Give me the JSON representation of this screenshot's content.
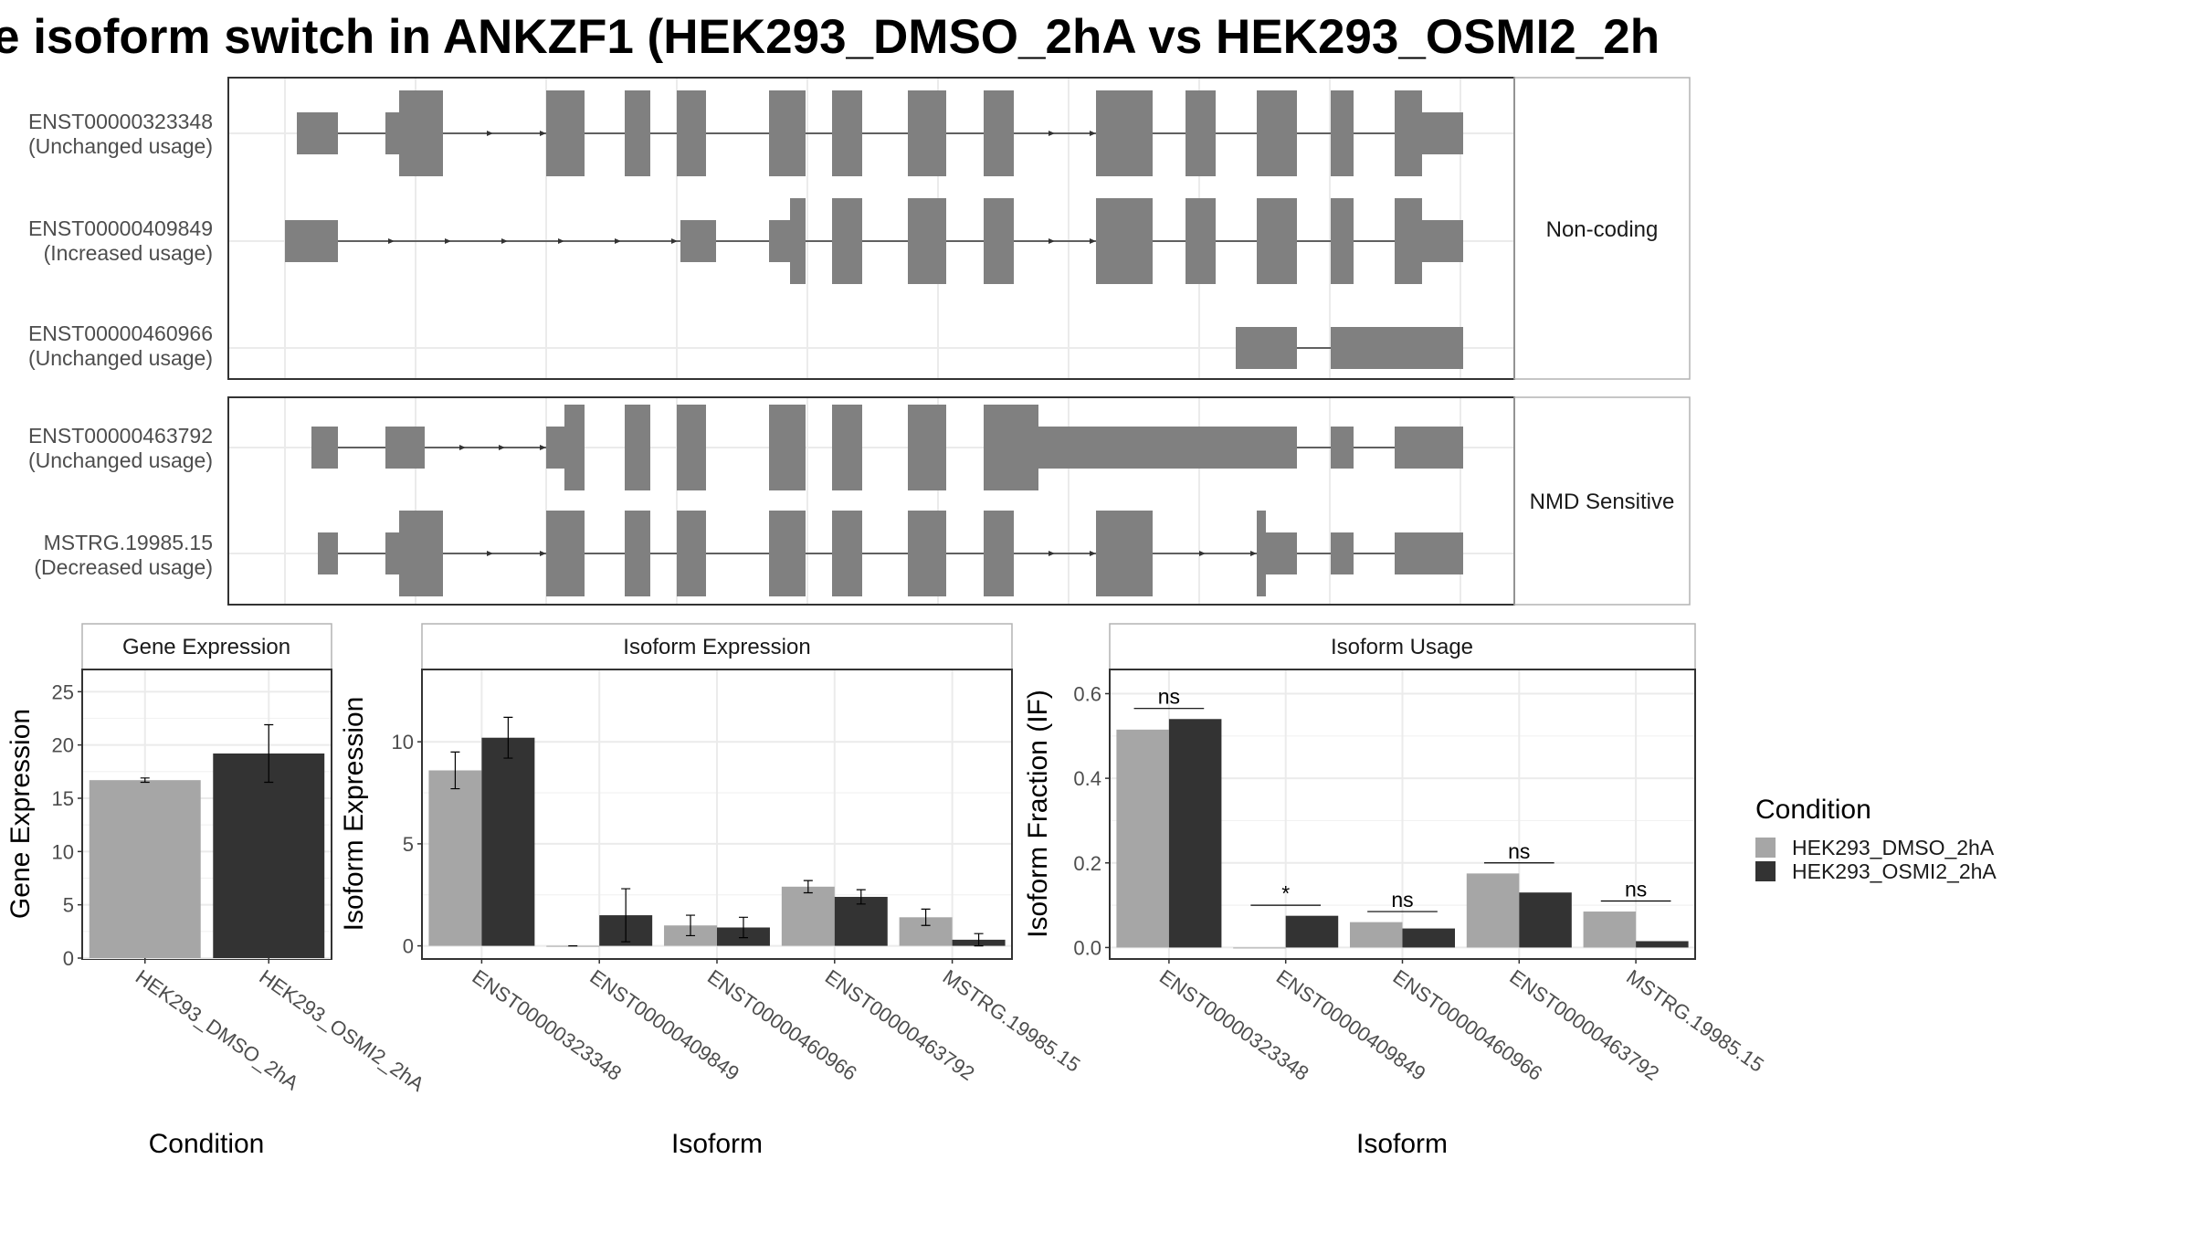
{
  "chart_data": [
    {
      "type": "gene-structure",
      "title": "e isoform switch in ANKZF1 (HEK293_DMSO_2hA vs HEK293_OSMI2_2h",
      "groups": [
        {
          "name": "Non-coding",
          "isoforms": [
            {
              "id": "ENST00000323348",
              "usage": "(Unchanged usage)"
            },
            {
              "id": "ENST00000409849",
              "usage": "(Increased usage)"
            },
            {
              "id": "ENST00000460966",
              "usage": "(Unchanged usage)"
            }
          ]
        },
        {
          "name": "NMD Sensitive",
          "isoforms": [
            {
              "id": "ENST00000463792",
              "usage": "(Unchanged usage)"
            },
            {
              "id": "MSTRG.19985.15",
              "usage": "(Decreased usage)"
            }
          ]
        }
      ],
      "exon_color": "#808080"
    },
    {
      "type": "bar",
      "title": "Gene Expression",
      "xlabel": "Condition",
      "ylabel": "Gene Expression",
      "categories": [
        "HEK293_DMSO_2hA",
        "HEK293_OSMI2_2hA"
      ],
      "values": [
        16.7,
        19.2
      ],
      "errors": [
        0.2,
        2.7
      ],
      "ylim": [
        0,
        27
      ],
      "yticks": [
        0,
        5,
        10,
        15,
        20,
        25
      ]
    },
    {
      "type": "bar",
      "title": "Isoform Expression",
      "xlabel": "Isoform",
      "ylabel": "Isoform Expression",
      "categories": [
        "ENST00000323348",
        "ENST00000409849",
        "ENST00000460966",
        "ENST00000463792",
        "MSTRG.19985.15"
      ],
      "series": [
        {
          "name": "HEK293_DMSO_2hA",
          "values": [
            8.6,
            0.0,
            1.0,
            2.9,
            1.4
          ],
          "errors": [
            0.9,
            0.0,
            0.5,
            0.3,
            0.4
          ]
        },
        {
          "name": "HEK293_OSMI2_2hA",
          "values": [
            10.2,
            1.5,
            0.9,
            2.4,
            0.3
          ],
          "errors": [
            1.0,
            1.3,
            0.5,
            0.35,
            0.3
          ]
        }
      ],
      "ylim": [
        -0.6,
        13.5
      ],
      "yticks": [
        0,
        5,
        10
      ]
    },
    {
      "type": "bar",
      "title": "Isoform Usage",
      "xlabel": "Isoform",
      "ylabel": "Isoform Fraction (IF)",
      "categories": [
        "ENST00000323348",
        "ENST00000409849",
        "ENST00000460966",
        "ENST00000463792",
        "MSTRG.19985.15"
      ],
      "series": [
        {
          "name": "HEK293_DMSO_2hA",
          "values": [
            0.515,
            0.0,
            0.06,
            0.175,
            0.085
          ]
        },
        {
          "name": "HEK293_OSMI2_2hA",
          "values": [
            0.54,
            0.075,
            0.045,
            0.13,
            0.015
          ]
        }
      ],
      "significance": [
        "ns",
        "*",
        "ns",
        "ns",
        "ns"
      ],
      "ylim": [
        -0.025,
        0.655
      ],
      "yticks": [
        "0.0",
        "0.2",
        "0.4",
        "0.6"
      ]
    }
  ],
  "legend": {
    "title": "Condition",
    "items": [
      {
        "name": "HEK293_DMSO_2hA",
        "color": "#a6a6a6"
      },
      {
        "name": "HEK293_OSMI2_2hA",
        "color": "#333333"
      }
    ]
  },
  "colors": {
    "dmso": "#a6a6a6",
    "osmi": "#333333",
    "exon": "#808080"
  }
}
